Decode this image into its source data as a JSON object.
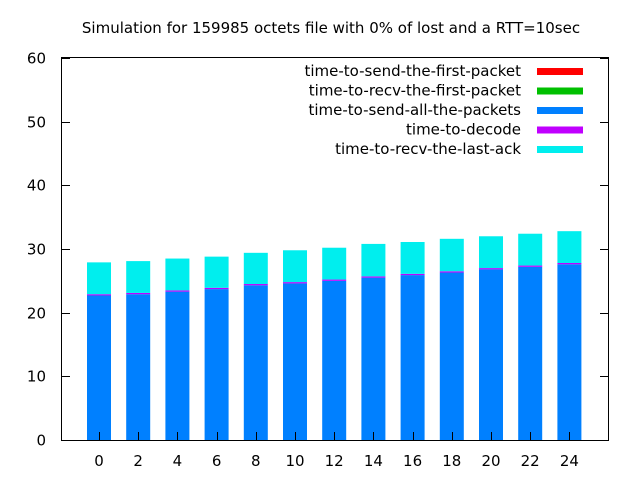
{
  "chart_data": {
    "type": "bar",
    "stacked": true,
    "title": "Simulation for 159985 octets file with 0% of lost and a RTT=10sec",
    "xlabel": "",
    "ylabel": "",
    "categories": [
      "0",
      "2",
      "4",
      "6",
      "8",
      "10",
      "12",
      "14",
      "16",
      "18",
      "20",
      "22",
      "24"
    ],
    "ylim": [
      0,
      60
    ],
    "yticks": [
      0,
      10,
      20,
      30,
      40,
      50,
      60
    ],
    "grid": false,
    "legend_position": "top-right",
    "series": [
      {
        "name": "time-to-send-the-first-packet",
        "color": "#ff0000",
        "values": [
          0,
          0,
          0,
          0,
          0,
          0,
          0,
          0,
          0,
          0,
          0,
          0,
          0
        ]
      },
      {
        "name": "time-to-recv-the-first-packet",
        "color": "#00c000",
        "values": [
          0,
          0,
          0,
          0,
          0,
          0,
          0,
          0,
          0,
          0,
          0,
          0,
          0
        ]
      },
      {
        "name": "time-to-send-all-the-packets",
        "color": "#0080ff",
        "values": [
          22.7,
          22.9,
          23.3,
          23.7,
          24.3,
          24.6,
          25.0,
          25.5,
          25.9,
          26.3,
          26.8,
          27.2,
          27.6
        ]
      },
      {
        "name": "time-to-decode",
        "color": "#c000ff",
        "values": [
          0.2,
          0.2,
          0.2,
          0.2,
          0.2,
          0.2,
          0.2,
          0.2,
          0.2,
          0.2,
          0.2,
          0.2,
          0.2
        ]
      },
      {
        "name": "time-to-recv-the-last-ack",
        "color": "#00eeee",
        "values": [
          5.0,
          5.0,
          5.0,
          4.9,
          4.9,
          5.0,
          5.0,
          5.1,
          5.0,
          5.1,
          5.0,
          5.0,
          5.0
        ]
      }
    ]
  }
}
